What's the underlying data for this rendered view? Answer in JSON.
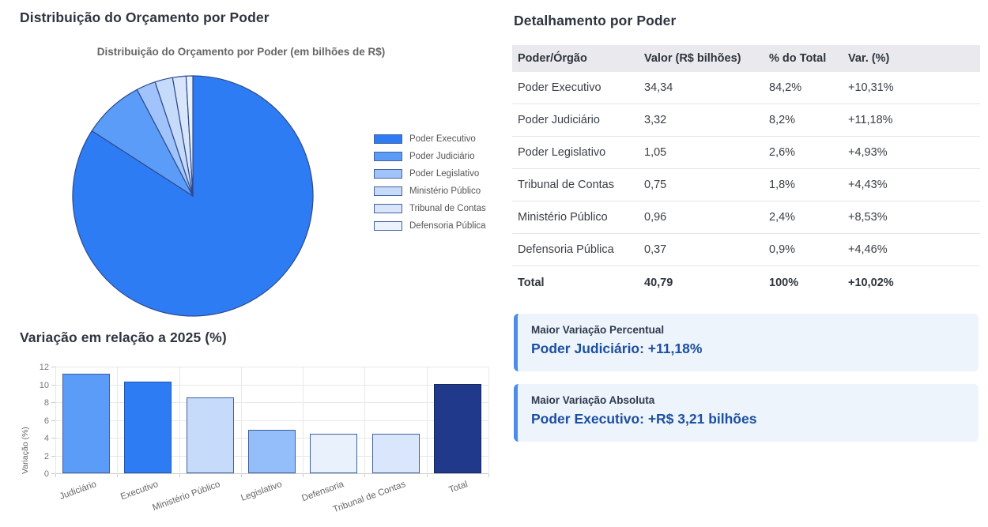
{
  "left": {
    "pie_heading": "Distribuição do Orçamento por Poder",
    "bar_heading": "Variação em relação a 2025 (%)"
  },
  "right": {
    "heading": "Detalhamento por Poder",
    "table": {
      "columns": [
        "Poder/Órgão",
        "Valor (R$ bilhões)",
        "% do Total",
        "Var. (%)"
      ],
      "rows": [
        [
          "Poder Executivo",
          "34,34",
          "84,2%",
          "+10,31%"
        ],
        [
          "Poder Judiciário",
          "3,32",
          "8,2%",
          "+11,18%"
        ],
        [
          "Poder Legislativo",
          "1,05",
          "2,6%",
          "+4,93%"
        ],
        [
          "Tribunal de Contas",
          "0,75",
          "1,8%",
          "+4,43%"
        ],
        [
          "Ministério Público",
          "0,96",
          "2,4%",
          "+8,53%"
        ],
        [
          "Defensoria Pública",
          "0,37",
          "0,9%",
          "+4,46%"
        ]
      ],
      "total_row": [
        "Total",
        "40,79",
        "100%",
        "+10,02%"
      ]
    },
    "callouts": [
      {
        "title": "Maior Variação Percentual",
        "value": "Poder Judiciário: +11,18%"
      },
      {
        "title": "Maior Variação Absoluta",
        "value": "Poder Executivo: +R$ 3,21 bilhões"
      }
    ]
  },
  "colors": {
    "accent_blue": "#2e7cf4",
    "table_header_bg": "#e9e9ee",
    "callout_bg": "#edf4fc",
    "callout_border": "#4c8ce8",
    "callout_value_text": "#1d4fa0"
  },
  "chart_data": [
    {
      "type": "pie",
      "title": "Distribuição do Orçamento por Poder (em bilhões de R$)",
      "labels": [
        "Poder Executivo",
        "Poder Judiciário",
        "Poder Legislativo",
        "Ministério Público",
        "Tribunal de Contas",
        "Defensoria Pública"
      ],
      "values_billions": [
        34.34,
        3.32,
        1.05,
        0.96,
        0.75,
        0.37
      ],
      "percents": [
        84.2,
        8.2,
        2.6,
        2.4,
        1.8,
        0.9
      ],
      "colors": [
        "#2e7cf4",
        "#5b9cf9",
        "#9fc3fa",
        "#c6dafa",
        "#d8e5fb",
        "#ebf2fe"
      ],
      "border_color": "#2d4a8c",
      "start_angle": "top",
      "direction": "clockwise",
      "legend_position": "right"
    },
    {
      "type": "bar",
      "categories": [
        "Judiciário",
        "Executivo",
        "Ministério Público",
        "Legislativo",
        "Defensoria",
        "Tribunal de Contas",
        "Total"
      ],
      "values": [
        11.18,
        10.31,
        8.53,
        4.93,
        4.46,
        4.43,
        10.02
      ],
      "colors": [
        "#5b9cf9",
        "#2e7cf4",
        "#c6dafa",
        "#93bef9",
        "#e9f1fd",
        "#d9e6fb",
        "#21398a"
      ],
      "border_colors": [
        "#3f5f9e",
        "#2156ab",
        "#3f5f9e",
        "#3f5f9e",
        "#3f5f9e",
        "#3f5f9e",
        "#16275e"
      ],
      "ylabel": "Variação (%)",
      "ylim": [
        0,
        12
      ],
      "yticks": [
        0,
        2,
        4,
        6,
        8,
        10,
        12
      ],
      "grid": true
    }
  ]
}
